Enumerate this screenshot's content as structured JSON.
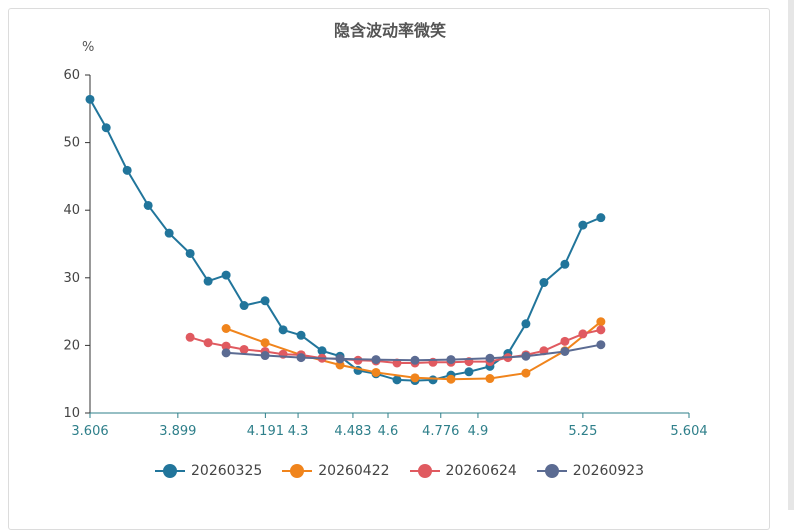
{
  "chart_data": {
    "type": "line",
    "title": "隐含波动率微笑",
    "ylabel": "%",
    "xlabel": "",
    "ylim": [
      10,
      60
    ],
    "yticks": [
      "10",
      "20",
      "30",
      "40",
      "50",
      "60"
    ],
    "xlim": [
      3.606,
      5.604
    ],
    "xtick_values": [
      3.606,
      3.899,
      4.191,
      4.3,
      4.483,
      4.6,
      4.776,
      4.9,
      5.25,
      5.604
    ],
    "xtick_labels": [
      "3.606",
      "3.899",
      "4.191",
      "4.3",
      "4.483",
      "4.6",
      "4.776",
      "4.9",
      "5.25",
      "5.604"
    ],
    "x_axis_scale": "categorical strikes, evenly spaced",
    "grid": false,
    "legend_position": "bottom",
    "series": [
      {
        "name": "20260325",
        "color": "#21759b",
        "points": [
          [
            3.606,
            56.4
          ],
          [
            3.66,
            52.2
          ],
          [
            3.73,
            45.9
          ],
          [
            3.8,
            40.7
          ],
          [
            3.87,
            36.6
          ],
          [
            3.94,
            33.6
          ],
          [
            4.0,
            29.5
          ],
          [
            4.06,
            30.4
          ],
          [
            4.12,
            25.9
          ],
          [
            4.19,
            26.6
          ],
          [
            4.25,
            22.3
          ],
          [
            4.31,
            21.5
          ],
          [
            4.38,
            19.2
          ],
          [
            4.44,
            18.4
          ],
          [
            4.5,
            16.3
          ],
          [
            4.56,
            15.8
          ],
          [
            4.63,
            14.9
          ],
          [
            4.69,
            14.8
          ],
          [
            4.75,
            14.9
          ],
          [
            4.81,
            15.6
          ],
          [
            4.87,
            16.1
          ],
          [
            4.94,
            16.9
          ],
          [
            5.0,
            18.8
          ],
          [
            5.06,
            23.2
          ],
          [
            5.12,
            29.3
          ],
          [
            5.19,
            32.0
          ],
          [
            5.25,
            37.8
          ],
          [
            5.31,
            38.9
          ]
        ]
      },
      {
        "name": "20260422",
        "color": "#f0841c",
        "points": [
          [
            4.06,
            22.5
          ],
          [
            4.19,
            20.4
          ],
          [
            4.31,
            18.6
          ],
          [
            4.44,
            17.1
          ],
          [
            4.56,
            16.0
          ],
          [
            4.69,
            15.2
          ],
          [
            4.81,
            15.0
          ],
          [
            4.94,
            15.1
          ],
          [
            5.06,
            15.9
          ],
          [
            5.19,
            19.2
          ],
          [
            5.31,
            23.5
          ]
        ]
      },
      {
        "name": "20260624",
        "color": "#e05a60",
        "points": [
          [
            3.94,
            21.2
          ],
          [
            4.0,
            20.4
          ],
          [
            4.06,
            19.9
          ],
          [
            4.12,
            19.4
          ],
          [
            4.19,
            19.1
          ],
          [
            4.25,
            18.7
          ],
          [
            4.31,
            18.6
          ],
          [
            4.38,
            18.1
          ],
          [
            4.44,
            18.0
          ],
          [
            4.5,
            17.8
          ],
          [
            4.56,
            17.7
          ],
          [
            4.63,
            17.4
          ],
          [
            4.69,
            17.4
          ],
          [
            4.75,
            17.5
          ],
          [
            4.81,
            17.5
          ],
          [
            4.87,
            17.6
          ],
          [
            4.94,
            17.6
          ],
          [
            5.0,
            18.2
          ],
          [
            5.06,
            18.6
          ],
          [
            5.12,
            19.2
          ],
          [
            5.19,
            20.6
          ],
          [
            5.25,
            21.7
          ],
          [
            5.31,
            22.3
          ]
        ]
      },
      {
        "name": "20260923",
        "color": "#5b6b92",
        "points": [
          [
            4.06,
            18.9
          ],
          [
            4.19,
            18.5
          ],
          [
            4.31,
            18.2
          ],
          [
            4.44,
            18.0
          ],
          [
            4.56,
            17.9
          ],
          [
            4.69,
            17.8
          ],
          [
            4.81,
            17.9
          ],
          [
            4.94,
            18.1
          ],
          [
            5.06,
            18.4
          ],
          [
            5.19,
            19.1
          ],
          [
            5.31,
            20.1
          ]
        ]
      }
    ]
  }
}
